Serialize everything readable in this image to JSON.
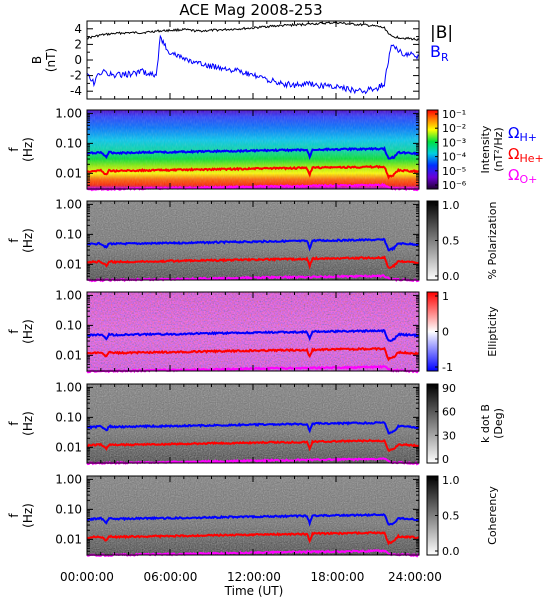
{
  "title": "ACE Mag 2008-253",
  "xlabel": "Time (UT)",
  "x_ticks": [
    "00:00:00",
    "06:00:00",
    "12:00:00",
    "18:00:00",
    "24:00:00"
  ],
  "colors": {
    "babs": "#000000",
    "br": "#0000ff",
    "h_plus": "#0000ff",
    "he_plus": "#ff0000",
    "o_plus": "#ff00ff"
  },
  "legend": {
    "babs": "|B|",
    "br_main": "B",
    "br_sub": "R",
    "omega": "Ω",
    "h_sub": "H+",
    "he_sub": "He+",
    "o_sub": "O+"
  },
  "panel_b": {
    "ylabel_main": "B",
    "ylabel_unit": "(nT)",
    "y_ticks": [
      "4",
      "2",
      "0",
      "-2",
      "-4"
    ]
  },
  "spectro_panels": [
    {
      "ylabel_main": "f",
      "ylabel_unit": "(Hz)",
      "y_ticks": [
        "1.00",
        "0.10",
        "0.01"
      ],
      "cbar_label": "Intensity",
      "cbar_unit": "(nT²/Hz)",
      "cbar_ticks": [
        "10⁻¹",
        "10⁻²",
        "10⁻³",
        "10⁻⁴",
        "10⁻⁵",
        "10⁻⁶"
      ],
      "colormap": "rainbow"
    },
    {
      "ylabel_main": "f",
      "ylabel_unit": "(Hz)",
      "y_ticks": [
        "1.00",
        "0.10",
        "0.01"
      ],
      "cbar_label": "% Polarization",
      "cbar_unit": "",
      "cbar_ticks": [
        "1.0",
        "0.5",
        "0.0"
      ],
      "colormap": "gray"
    },
    {
      "ylabel_main": "f",
      "ylabel_unit": "(Hz)",
      "y_ticks": [
        "1.00",
        "0.10",
        "0.01"
      ],
      "cbar_label": "Ellipticity",
      "cbar_unit": "",
      "cbar_ticks": [
        "1",
        "0",
        "-1"
      ],
      "colormap": "bwr"
    },
    {
      "ylabel_main": "f",
      "ylabel_unit": "(Hz)",
      "y_ticks": [
        "1.00",
        "0.10",
        "0.01"
      ],
      "cbar_label": "k dot B",
      "cbar_unit": "(Deg)",
      "cbar_ticks": [
        "90",
        "60",
        "30",
        "0"
      ],
      "colormap": "gray"
    },
    {
      "ylabel_main": "f",
      "ylabel_unit": "(Hz)",
      "y_ticks": [
        "1.00",
        "0.10",
        "0.01"
      ],
      "cbar_label": "Coherency",
      "cbar_unit": "",
      "cbar_ticks": [
        "1.0",
        "0.5",
        "0.0"
      ],
      "colormap": "gray"
    }
  ],
  "chart_data": {
    "type": "line",
    "x_unit": "hours UT",
    "xlim": [
      0,
      24
    ],
    "b_field": {
      "ylim": [
        -5,
        5
      ],
      "series": [
        {
          "name": "|B|",
          "x": [
            0,
            1,
            2,
            3,
            4,
            5,
            6,
            7,
            8,
            9,
            10,
            11,
            12,
            13,
            14,
            15,
            16,
            17,
            18,
            19,
            20,
            21,
            21.5,
            22,
            23,
            24
          ],
          "y": [
            2.8,
            3.2,
            3.4,
            3.5,
            3.5,
            3.7,
            3.8,
            3.9,
            3.7,
            3.8,
            3.9,
            4.0,
            4.1,
            4.3,
            4.4,
            4.5,
            4.6,
            4.7,
            4.8,
            4.6,
            4.5,
            4.3,
            4.1,
            3.0,
            2.8,
            2.6
          ]
        },
        {
          "name": "B_R",
          "x": [
            0,
            0.5,
            1,
            2,
            3,
            4,
            5,
            5.3,
            6,
            7,
            8,
            9,
            10,
            11,
            12,
            13,
            14,
            15,
            16,
            17,
            18,
            19,
            20,
            21,
            21.5,
            22,
            22.5,
            23,
            24
          ],
          "y": [
            -2.0,
            -3.0,
            -1.5,
            -2.0,
            -1.8,
            -1.5,
            -2.0,
            2.8,
            1.0,
            0.2,
            -0.5,
            -0.8,
            -1.0,
            -1.5,
            -2.0,
            -2.5,
            -3.0,
            -3.2,
            -3.0,
            -3.3,
            -3.5,
            -3.8,
            -4.0,
            -3.6,
            -3.0,
            2.0,
            1.2,
            0.8,
            0.5
          ]
        }
      ]
    },
    "freq_ylim_hz": [
      0.003,
      1.3
    ],
    "gyrofrequency_series": [
      {
        "name": "Ω H+",
        "x": [
          0,
          1,
          1.4,
          1.6,
          2,
          4,
          6,
          8,
          10,
          12,
          14,
          15.9,
          16.1,
          16.3,
          18,
          20,
          21.5,
          21.8,
          22.2,
          22.5,
          24
        ],
        "y": [
          0.046,
          0.05,
          0.036,
          0.05,
          0.048,
          0.05,
          0.051,
          0.053,
          0.055,
          0.057,
          0.059,
          0.06,
          0.035,
          0.062,
          0.063,
          0.065,
          0.066,
          0.03,
          0.035,
          0.05,
          0.046
        ]
      },
      {
        "name": "Ω He+",
        "x": [
          0,
          1,
          1.4,
          1.6,
          2,
          4,
          6,
          8,
          10,
          12,
          14,
          15.9,
          16.1,
          16.3,
          18,
          20,
          21.5,
          21.8,
          22.2,
          22.5,
          24
        ],
        "y": [
          0.0115,
          0.0125,
          0.009,
          0.0125,
          0.012,
          0.0125,
          0.0128,
          0.0133,
          0.0138,
          0.0143,
          0.0148,
          0.015,
          0.009,
          0.0155,
          0.0158,
          0.0163,
          0.0165,
          0.0075,
          0.009,
          0.0125,
          0.0115
        ]
      },
      {
        "name": "Ω O+",
        "x": [
          0,
          2,
          4,
          6,
          8,
          10,
          12,
          14,
          16,
          18,
          20,
          21.5,
          22,
          22.5,
          24
        ],
        "y": [
          0.0029,
          0.003,
          0.0031,
          0.0032,
          0.0033,
          0.0034,
          0.0036,
          0.0037,
          0.0038,
          0.0039,
          0.004,
          0.0041,
          0.0031,
          0.0031,
          0.0029
        ]
      }
    ]
  }
}
